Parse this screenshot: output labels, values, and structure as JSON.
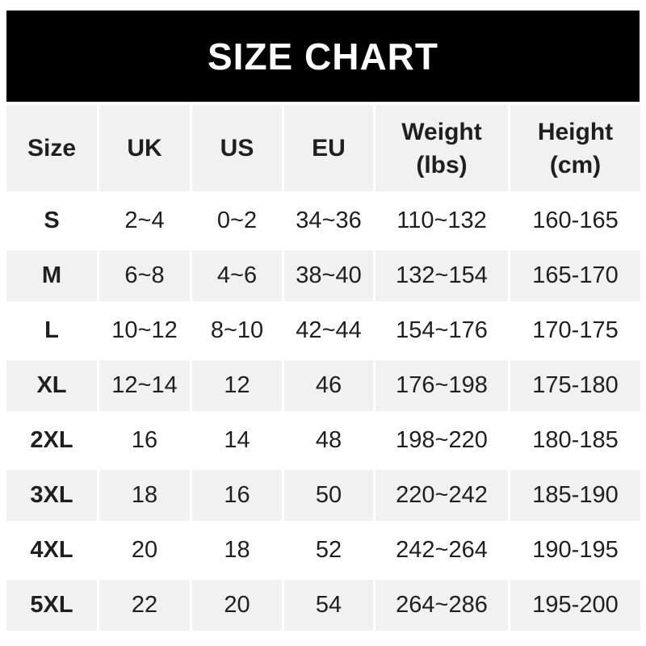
{
  "banner": {
    "title": "SIZE CHART"
  },
  "colors": {
    "banner_bg": "#000000",
    "banner_text": "#ffffff",
    "row_alt_bg": "#f1f1f1",
    "text": "#1f1f1f",
    "page_bg": "#ffffff"
  },
  "table": {
    "columns": [
      {
        "label": "Size",
        "sub": ""
      },
      {
        "label": "UK",
        "sub": ""
      },
      {
        "label": "US",
        "sub": ""
      },
      {
        "label": "EU",
        "sub": ""
      },
      {
        "label": "Weight",
        "sub": "(lbs)"
      },
      {
        "label": "Height",
        "sub": "(cm)"
      }
    ],
    "rows": [
      {
        "size": "S",
        "uk": "2~4",
        "us": "0~2",
        "eu": "34~36",
        "weight": "110~132",
        "height": "160-165"
      },
      {
        "size": "M",
        "uk": "6~8",
        "us": "4~6",
        "eu": "38~40",
        "weight": "132~154",
        "height": "165-170"
      },
      {
        "size": "L",
        "uk": "10~12",
        "us": "8~10",
        "eu": "42~44",
        "weight": "154~176",
        "height": "170-175"
      },
      {
        "size": "XL",
        "uk": "12~14",
        "us": "12",
        "eu": "46",
        "weight": "176~198",
        "height": "175-180"
      },
      {
        "size": "2XL",
        "uk": "16",
        "us": "14",
        "eu": "48",
        "weight": "198~220",
        "height": "180-185"
      },
      {
        "size": "3XL",
        "uk": "18",
        "us": "16",
        "eu": "50",
        "weight": "220~242",
        "height": "185-190"
      },
      {
        "size": "4XL",
        "uk": "20",
        "us": "18",
        "eu": "52",
        "weight": "242~264",
        "height": "190-195"
      },
      {
        "size": "5XL",
        "uk": "22",
        "us": "20",
        "eu": "54",
        "weight": "264~286",
        "height": "195-200"
      }
    ]
  },
  "chart_data": {
    "type": "table",
    "title": "SIZE CHART",
    "columns": [
      "Size",
      "UK",
      "US",
      "EU",
      "Weight (lbs)",
      "Height (cm)"
    ],
    "rows": [
      [
        "S",
        "2~4",
        "0~2",
        "34~36",
        "110~132",
        "160-165"
      ],
      [
        "M",
        "6~8",
        "4~6",
        "38~40",
        "132~154",
        "165-170"
      ],
      [
        "L",
        "10~12",
        "8~10",
        "42~44",
        "154~176",
        "170-175"
      ],
      [
        "XL",
        "12~14",
        "12",
        "46",
        "176~198",
        "175-180"
      ],
      [
        "2XL",
        "16",
        "14",
        "48",
        "198~220",
        "180-185"
      ],
      [
        "3XL",
        "18",
        "16",
        "50",
        "220~242",
        "185-190"
      ],
      [
        "4XL",
        "20",
        "18",
        "52",
        "242~264",
        "190-195"
      ],
      [
        "5XL",
        "22",
        "20",
        "54",
        "264~286",
        "195-200"
      ]
    ]
  }
}
